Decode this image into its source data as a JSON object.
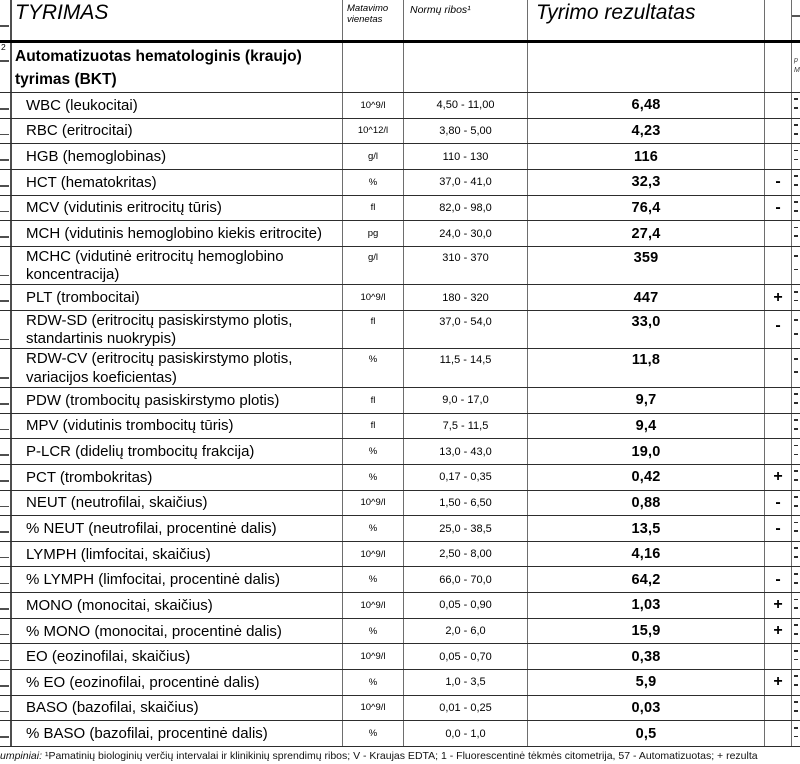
{
  "header": {
    "col_test": "TYRIMAS",
    "col_unit": "Matavimo vienetas",
    "col_range": "Normų ribos¹",
    "col_result": "Tyrimo rezultatas",
    "edge_line1": "p",
    "edge_line2": "M"
  },
  "section": {
    "superscript": "2",
    "title": "Automatizuotas hematologinis (kraujo) tyrimas (BKT)"
  },
  "table": {
    "rows": [
      {
        "name": "WBC (leukocitai)",
        "unit": "10^9/l",
        "range": "4,50 - 11,00",
        "result": "6,48",
        "flag": ""
      },
      {
        "name": "RBC (eritrocitai)",
        "unit": "10^12/l",
        "range": "3,80 - 5,00",
        "result": "4,23",
        "flag": ""
      },
      {
        "name": "HGB (hemoglobinas)",
        "unit": "g/l",
        "range": "110 - 130",
        "result": "116",
        "flag": ""
      },
      {
        "name": "HCT (hematokritas)",
        "unit": "%",
        "range": "37,0 - 41,0",
        "result": "32,3",
        "flag": "-"
      },
      {
        "name": "MCV (vidutinis eritrocitų tūris)",
        "unit": "fl",
        "range": "82,0 - 98,0",
        "result": "76,4",
        "flag": "-"
      },
      {
        "name": "MCH (vidutinis hemoglobino kiekis eritrocite)",
        "unit": "pg",
        "range": "24,0 - 30,0",
        "result": "27,4",
        "flag": ""
      },
      {
        "name": "MCHC (vidutinė eritrocitų hemoglobino koncentracija)",
        "unit": "g/l",
        "range": "310 - 370",
        "result": "359",
        "flag": ""
      },
      {
        "name": "PLT (trombocitai)",
        "unit": "10^9/l",
        "range": "180 - 320",
        "result": "447",
        "flag": "+"
      },
      {
        "name": "RDW-SD (eritrocitų pasiskirstymo plotis, standartinis nuokrypis)",
        "unit": "fl",
        "range": "37,0 - 54,0",
        "result": "33,0",
        "flag": "-"
      },
      {
        "name": "RDW-CV (eritrocitų pasiskirstymo plotis, variacijos koeficientas)",
        "unit": "%",
        "range": "11,5 - 14,5",
        "result": "11,8",
        "flag": ""
      },
      {
        "name": "PDW (trombocitų pasiskirstymo plotis)",
        "unit": "fl",
        "range": "9,0 - 17,0",
        "result": "9,7",
        "flag": ""
      },
      {
        "name": "MPV (vidutinis trombocitų tūris)",
        "unit": "fl",
        "range": "7,5 - 11,5",
        "result": "9,4",
        "flag": ""
      },
      {
        "name": "P-LCR (didelių trombocitų frakcija)",
        "unit": "%",
        "range": "13,0 - 43,0",
        "result": "19,0",
        "flag": ""
      },
      {
        "name": "PCT (trombokritas)",
        "unit": "%",
        "range": "0,17 - 0,35",
        "result": "0,42",
        "flag": "+"
      },
      {
        "name": "NEUT (neutrofilai, skaičius)",
        "unit": "10^9/l",
        "range": "1,50 - 6,50",
        "result": "0,88",
        "flag": "-"
      },
      {
        "name": "% NEUT (neutrofilai, procentinė dalis)",
        "unit": "%",
        "range": "25,0 - 38,5",
        "result": "13,5",
        "flag": "-"
      },
      {
        "name": "LYMPH (limfocitai, skaičius)",
        "unit": "10^9/l",
        "range": "2,50 - 8,00",
        "result": "4,16",
        "flag": ""
      },
      {
        "name": "% LYMPH (limfocitai, procentinė dalis)",
        "unit": "%",
        "range": "66,0 - 70,0",
        "result": "64,2",
        "flag": "-"
      },
      {
        "name": "MONO (monocitai, skaičius)",
        "unit": "10^9/l",
        "range": "0,05 - 0,90",
        "result": "1,03",
        "flag": "+"
      },
      {
        "name": "% MONO (monocitai, procentinė dalis)",
        "unit": "%",
        "range": "2,0 - 6,0",
        "result": "15,9",
        "flag": "+"
      },
      {
        "name": "EO (eozinofilai, skaičius)",
        "unit": "10^9/l",
        "range": "0,05 - 0,70",
        "result": "0,38",
        "flag": ""
      },
      {
        "name": "% EO (eozinofilai, procentinė dalis)",
        "unit": "%",
        "range": "1,0 - 3,5",
        "result": "5,9",
        "flag": "+"
      },
      {
        "name": "BASO (bazofilai, skaičius)",
        "unit": "10^9/l",
        "range": "0,01 - 0,25",
        "result": "0,03",
        "flag": ""
      },
      {
        "name": "% BASO (bazofilai, procentinė dalis)",
        "unit": "%",
        "range": "0,0 - 1,0",
        "result": "0,5",
        "flag": ""
      }
    ]
  },
  "footer": {
    "lead_italic": "umpiniai:",
    "text": " ¹Pamatinių biologinių verčių intervalai ir klinikinių sprendimų ribos; V - Kraujas EDTA; 1 - Fluorescentinė tėkmės citometrija, 57 - Automatizuotas; + rezulta"
  },
  "colors": {
    "row_border": "#2d2d2d",
    "column_border": "#6e6e6e",
    "text": "#000000",
    "background": "#ffffff"
  }
}
